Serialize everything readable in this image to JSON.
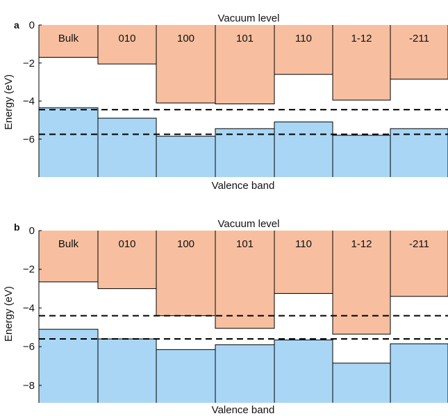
{
  "colors": {
    "conduction": "#f7bfa0",
    "valence": "#a9d6f5",
    "line": "#000000"
  },
  "chart_data": [
    {
      "type": "bar",
      "panel_label": "a",
      "title": "Vacuum level",
      "xlabel": "Valence band",
      "ylabel": "Energy (eV)",
      "ylim": [
        -8,
        0
      ],
      "yticks": [
        0,
        -2,
        -4,
        -6
      ],
      "ytick_labels": [
        "0",
        "−2",
        "−4",
        "−6"
      ],
      "categories": [
        "Bulk",
        "010",
        "100",
        "101",
        "110",
        "1-12",
        "-211"
      ],
      "conduction_band": [
        -1.7,
        -2.05,
        -4.1,
        -4.15,
        -2.6,
        -3.95,
        -2.85
      ],
      "valence_band": [
        -4.35,
        -4.9,
        -5.85,
        -5.45,
        -5.1,
        -5.8,
        -5.45
      ],
      "reference_lines": [
        -4.45,
        -5.75
      ]
    },
    {
      "type": "bar",
      "panel_label": "b",
      "title": "Vacuum level",
      "xlabel": "Valence band",
      "ylabel": "Energy (eV)",
      "ylim": [
        -8.9,
        0
      ],
      "yticks": [
        0,
        -2,
        -4,
        -6,
        -8
      ],
      "ytick_labels": [
        "0",
        "−2",
        "−4",
        "−6",
        "−8"
      ],
      "categories": [
        "Bulk",
        "010",
        "100",
        "101",
        "110",
        "1-12",
        "-211"
      ],
      "conduction_band": [
        -2.65,
        -3.0,
        -4.4,
        -5.05,
        -3.25,
        -5.35,
        -3.4
      ],
      "valence_band": [
        -5.1,
        -5.6,
        -6.15,
        -5.9,
        -5.65,
        -6.85,
        -5.85
      ],
      "reference_lines": [
        -4.4,
        -5.6
      ]
    }
  ]
}
